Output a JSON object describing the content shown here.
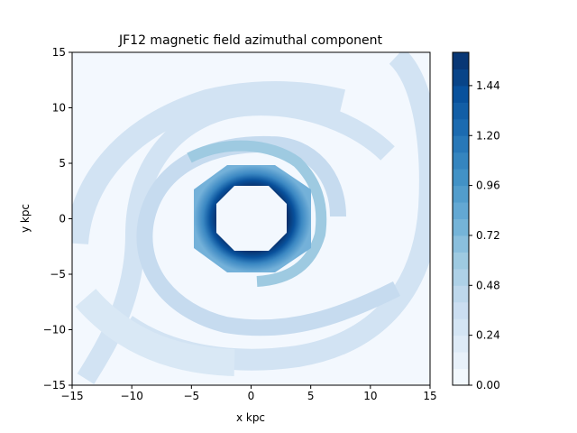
{
  "chart_data": {
    "type": "heatmap",
    "title": "JF12 magnetic field azimuthal component",
    "xlabel": "x kpc",
    "ylabel": "y kpc",
    "xlim": [
      -15,
      15
    ],
    "ylim": [
      -15,
      15
    ],
    "x_ticks": [
      -15,
      -10,
      -5,
      0,
      5,
      10,
      15
    ],
    "y_ticks": [
      -15,
      -10,
      -5,
      0,
      5,
      10,
      15
    ],
    "x_tick_labels": [
      "−15",
      "−10",
      "−5",
      "0",
      "5",
      "10",
      "15"
    ],
    "y_tick_labels": [
      "−15",
      "−10",
      "−5",
      "0",
      "5",
      "10",
      "15"
    ],
    "colormap": "Blues",
    "colorbar": {
      "vmin": 0.0,
      "vmax": 1.6,
      "levels": 20,
      "ticks": [
        0.0,
        0.24,
        0.48,
        0.72,
        0.96,
        1.2,
        1.44
      ],
      "tick_labels": [
        "0.00",
        "0.24",
        "0.48",
        "0.72",
        "0.96",
        "1.20",
        "1.44"
      ]
    },
    "features": {
      "inner_hole_radius_kpc": 3.0,
      "inner_ring": {
        "r_inner_kpc": 3.0,
        "r_outer_kpc": 5.0,
        "value_max": 1.6,
        "value_min": 0.4
      },
      "spiral_arms": [
        {
          "name": "",
          "value": 0.4
        },
        {
          "name": "",
          "value": 0.28
        },
        {
          "name": "",
          "value": 0.22
        }
      ],
      "background_value": 0.02
    },
    "grid": false,
    "legend": "none"
  }
}
